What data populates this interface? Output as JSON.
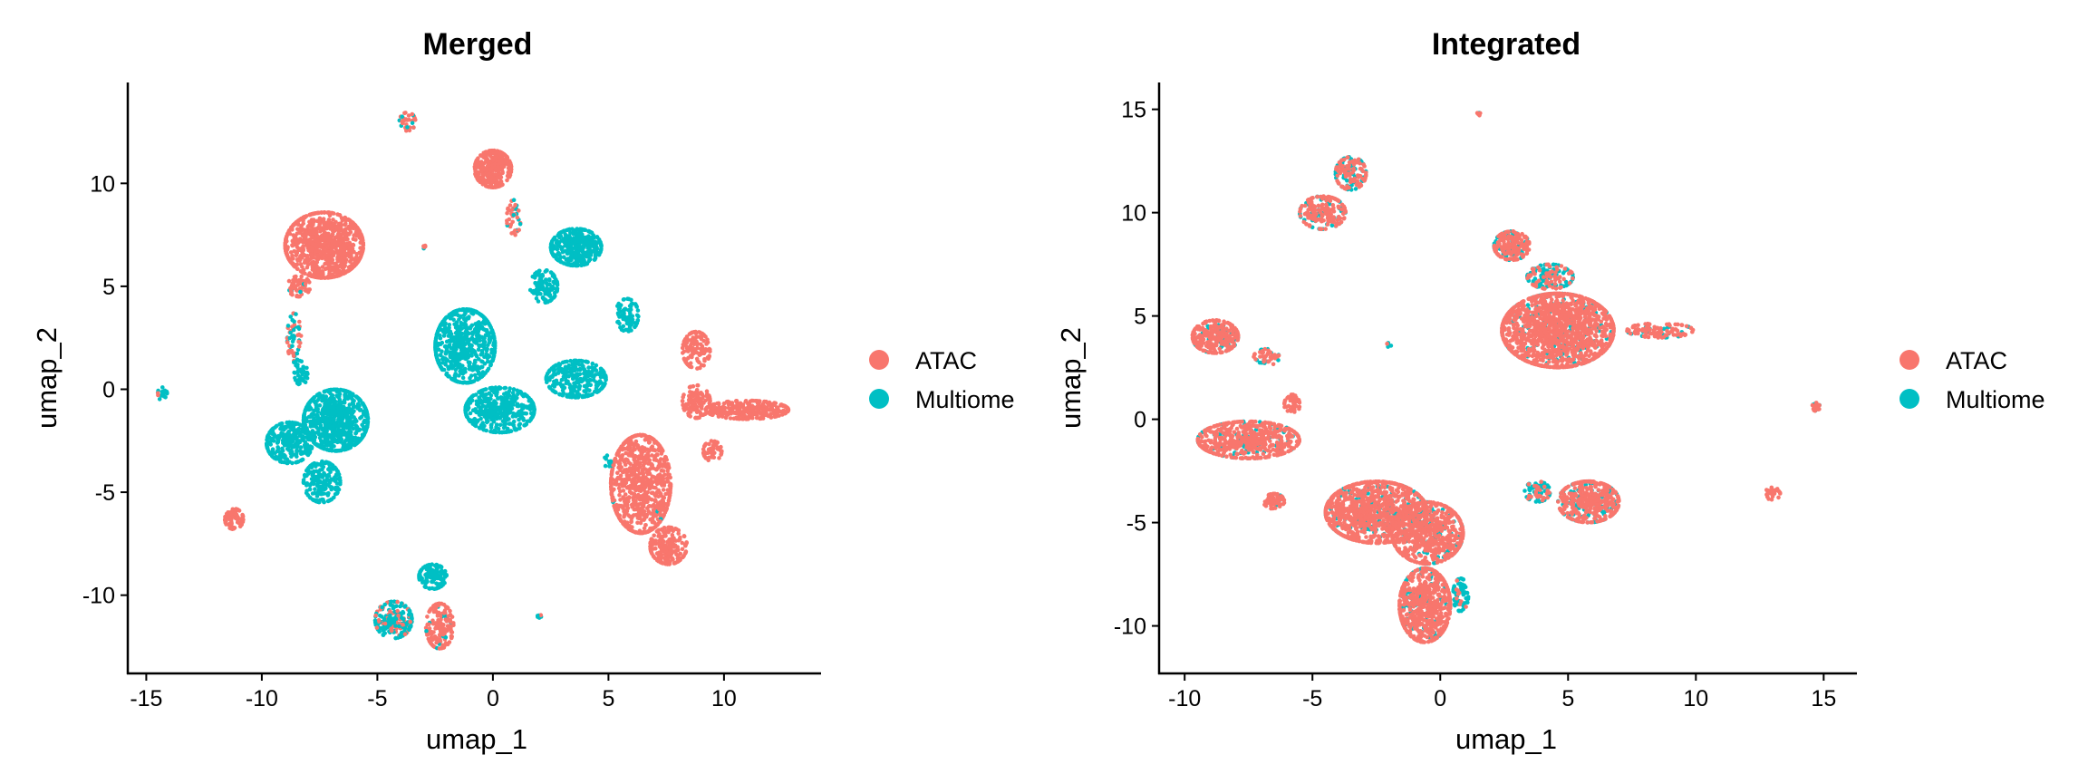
{
  "colors": {
    "ATAC": "#F8766D",
    "Multiome": "#00BFC4"
  },
  "chart_data": [
    {
      "type": "scatter",
      "title": "Merged",
      "xlabel": "umap_1",
      "ylabel": "umap_2",
      "xlim": [
        -15.8,
        14.2
      ],
      "ylim": [
        -13.8,
        14.9
      ],
      "xticks": [
        -15,
        -10,
        -5,
        0,
        5,
        10
      ],
      "yticks": [
        -10,
        -5,
        0,
        5,
        10
      ],
      "grid": false,
      "legend": {
        "position": "right",
        "entries": [
          "ATAC",
          "Multiome"
        ]
      },
      "cluster_format": [
        "x_center",
        "y_center",
        "x_spread",
        "y_spread",
        "n_points",
        "fraction_ATAC"
      ],
      "clusters": [
        [
          -7.3,
          7.0,
          1.7,
          1.6,
          900,
          1.0
        ],
        [
          -8.4,
          5.0,
          0.5,
          0.5,
          60,
          0.9
        ],
        [
          -8.6,
          2.5,
          0.3,
          1.2,
          60,
          0.5
        ],
        [
          -8.3,
          0.8,
          0.3,
          0.6,
          40,
          0.0
        ],
        [
          0.0,
          10.7,
          0.8,
          0.9,
          300,
          1.0
        ],
        [
          0.9,
          8.3,
          0.3,
          0.9,
          40,
          0.8
        ],
        [
          -3.7,
          13.0,
          0.35,
          0.45,
          30,
          0.8
        ],
        [
          -3.0,
          6.9,
          0.1,
          0.1,
          6,
          0.3
        ],
        [
          3.6,
          6.9,
          1.1,
          0.9,
          420,
          0.0
        ],
        [
          2.2,
          5.0,
          0.6,
          0.8,
          110,
          0.0
        ],
        [
          -1.2,
          2.1,
          1.3,
          1.8,
          600,
          0.0
        ],
        [
          0.3,
          -1.0,
          1.5,
          1.1,
          450,
          0.0
        ],
        [
          3.6,
          0.5,
          1.3,
          0.9,
          300,
          0.0
        ],
        [
          5.8,
          3.6,
          0.5,
          0.8,
          80,
          0.0
        ],
        [
          -6.8,
          -1.5,
          1.4,
          1.5,
          750,
          0.0
        ],
        [
          -8.8,
          -2.6,
          1.0,
          1.0,
          300,
          0.0
        ],
        [
          -7.4,
          -4.5,
          0.8,
          1.0,
          200,
          0.0
        ],
        [
          -14.3,
          -0.2,
          0.2,
          0.35,
          20,
          0.3
        ],
        [
          -11.2,
          -6.3,
          0.4,
          0.5,
          70,
          1.0
        ],
        [
          6.4,
          -4.6,
          1.3,
          2.4,
          800,
          0.995
        ],
        [
          7.6,
          -7.6,
          0.8,
          0.9,
          200,
          1.0
        ],
        [
          8.8,
          1.9,
          0.6,
          0.9,
          120,
          1.0
        ],
        [
          11.0,
          -1.0,
          1.8,
          0.45,
          300,
          0.99
        ],
        [
          8.8,
          -0.6,
          0.6,
          0.8,
          120,
          1.0
        ],
        [
          9.5,
          -3.0,
          0.4,
          0.5,
          50,
          1.0
        ],
        [
          5.0,
          -3.5,
          0.2,
          0.3,
          12,
          0.0
        ],
        [
          -2.6,
          -9.1,
          0.6,
          0.6,
          120,
          0.0
        ],
        [
          -4.3,
          -11.2,
          0.8,
          0.9,
          200,
          0.3
        ],
        [
          -2.3,
          -11.5,
          0.6,
          1.1,
          160,
          0.9
        ],
        [
          2.0,
          -11.0,
          0.1,
          0.1,
          6,
          0.4
        ]
      ]
    },
    {
      "type": "scatter",
      "title": "Integrated",
      "xlabel": "umap_1",
      "ylabel": "umap_2",
      "xlim": [
        -11.0,
        16.3
      ],
      "ylim": [
        -12.3,
        16.3
      ],
      "xticks": [
        -10,
        -5,
        0,
        5,
        10,
        15
      ],
      "yticks": [
        -10,
        -5,
        0,
        5,
        10,
        15
      ],
      "grid": false,
      "legend": {
        "position": "right",
        "entries": [
          "ATAC",
          "Multiome"
        ]
      },
      "cluster_format": [
        "x_center",
        "y_center",
        "x_spread",
        "y_spread",
        "n_points",
        "fraction_ATAC"
      ],
      "clusters": [
        [
          -3.5,
          11.9,
          0.6,
          0.8,
          150,
          0.6
        ],
        [
          -4.6,
          10.0,
          0.9,
          0.8,
          200,
          0.7
        ],
        [
          -8.8,
          4.0,
          0.9,
          0.8,
          300,
          0.85
        ],
        [
          -6.8,
          3.0,
          0.5,
          0.4,
          50,
          0.8
        ],
        [
          4.6,
          4.3,
          2.2,
          1.8,
          1500,
          0.85
        ],
        [
          2.8,
          8.4,
          0.7,
          0.7,
          200,
          0.75
        ],
        [
          4.3,
          6.9,
          0.9,
          0.6,
          150,
          0.5
        ],
        [
          8.6,
          4.3,
          1.3,
          0.35,
          120,
          0.85
        ],
        [
          -2.0,
          3.6,
          0.1,
          0.1,
          6,
          0.4
        ],
        [
          1.5,
          14.8,
          0.1,
          0.1,
          6,
          0.6
        ],
        [
          -7.5,
          -1.0,
          2.0,
          0.9,
          600,
          0.85
        ],
        [
          -6.5,
          -4.0,
          0.4,
          0.4,
          60,
          0.85
        ],
        [
          -5.8,
          0.7,
          0.3,
          0.5,
          40,
          1.0
        ],
        [
          -2.5,
          -4.5,
          2.0,
          1.5,
          1100,
          0.85
        ],
        [
          -0.5,
          -5.5,
          1.4,
          1.5,
          700,
          0.85
        ],
        [
          -0.6,
          -9.0,
          1.0,
          1.8,
          700,
          0.85
        ],
        [
          0.8,
          -8.5,
          0.3,
          0.8,
          80,
          0.2
        ],
        [
          5.8,
          -4.0,
          1.2,
          1.0,
          450,
          0.8
        ],
        [
          3.8,
          -3.5,
          0.5,
          0.5,
          80,
          0.3
        ],
        [
          13.0,
          -3.6,
          0.3,
          0.3,
          25,
          1.0
        ],
        [
          14.7,
          0.6,
          0.15,
          0.2,
          20,
          0.6
        ]
      ]
    }
  ]
}
